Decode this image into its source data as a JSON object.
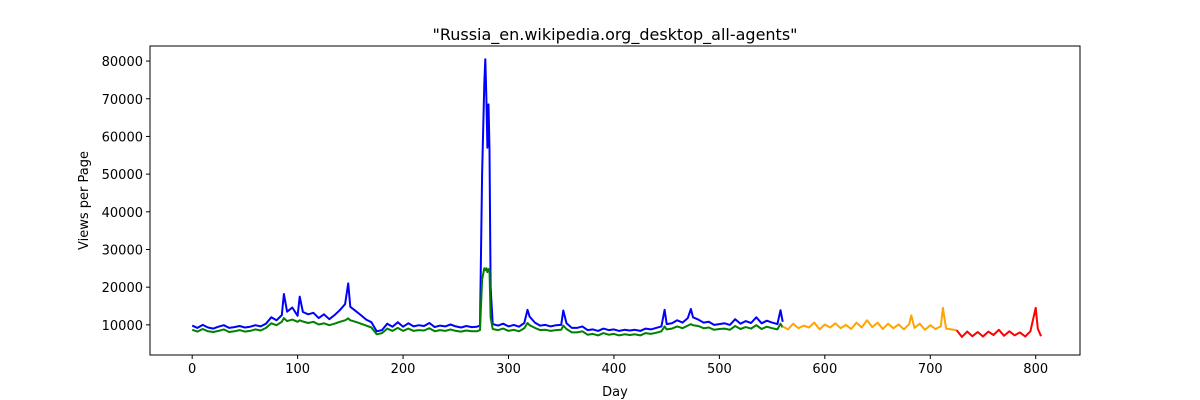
{
  "chart_data": {
    "type": "line",
    "title": "\"Russia_en.wikipedia.org_desktop_all-agents\"",
    "xlabel": "Day",
    "ylabel": "Views per Page",
    "xlim": [
      -40,
      842
    ],
    "ylim": [
      2000,
      84000
    ],
    "xticks": [
      0,
      100,
      200,
      300,
      400,
      500,
      600,
      700,
      800
    ],
    "yticks": [
      10000,
      20000,
      30000,
      40000,
      50000,
      60000,
      70000,
      80000
    ],
    "grid": false,
    "legend": "none",
    "series": [
      {
        "color": "#0000ff",
        "points": [
          [
            0,
            9800
          ],
          [
            5,
            9200
          ],
          [
            10,
            10000
          ],
          [
            15,
            9300
          ],
          [
            20,
            9000
          ],
          [
            25,
            9500
          ],
          [
            30,
            9900
          ],
          [
            35,
            9200
          ],
          [
            40,
            9400
          ],
          [
            45,
            9700
          ],
          [
            50,
            9300
          ],
          [
            55,
            9500
          ],
          [
            60,
            9900
          ],
          [
            65,
            9600
          ],
          [
            70,
            10300
          ],
          [
            75,
            12000
          ],
          [
            80,
            11200
          ],
          [
            85,
            12600
          ],
          [
            87,
            18200
          ],
          [
            90,
            13500
          ],
          [
            95,
            14600
          ],
          [
            100,
            12400
          ],
          [
            102,
            17500
          ],
          [
            105,
            13400
          ],
          [
            110,
            12800
          ],
          [
            115,
            13200
          ],
          [
            120,
            11800
          ],
          [
            125,
            12800
          ],
          [
            130,
            11500
          ],
          [
            135,
            12600
          ],
          [
            140,
            13900
          ],
          [
            145,
            15500
          ],
          [
            148,
            21000
          ],
          [
            150,
            14800
          ],
          [
            155,
            13700
          ],
          [
            160,
            12600
          ],
          [
            165,
            11400
          ],
          [
            170,
            10700
          ],
          [
            175,
            8300
          ],
          [
            180,
            8600
          ],
          [
            185,
            10300
          ],
          [
            190,
            9500
          ],
          [
            195,
            10700
          ],
          [
            200,
            9500
          ],
          [
            205,
            10400
          ],
          [
            210,
            9600
          ],
          [
            215,
            9900
          ],
          [
            220,
            9700
          ],
          [
            225,
            10500
          ],
          [
            230,
            9400
          ],
          [
            235,
            9800
          ],
          [
            240,
            9600
          ],
          [
            245,
            10100
          ],
          [
            250,
            9600
          ],
          [
            255,
            9300
          ],
          [
            260,
            9700
          ],
          [
            265,
            9400
          ],
          [
            270,
            9500
          ],
          [
            273,
            9800
          ],
          [
            275,
            50000
          ],
          [
            277,
            74000
          ],
          [
            278,
            80500
          ],
          [
            279,
            70000
          ],
          [
            280,
            57000
          ],
          [
            281,
            68500
          ],
          [
            282,
            56500
          ],
          [
            283,
            20000
          ],
          [
            285,
            10200
          ],
          [
            290,
            9800
          ],
          [
            295,
            10300
          ],
          [
            300,
            9600
          ],
          [
            305,
            10000
          ],
          [
            310,
            9500
          ],
          [
            315,
            10500
          ],
          [
            318,
            14000
          ],
          [
            320,
            12200
          ],
          [
            325,
            10600
          ],
          [
            330,
            9800
          ],
          [
            335,
            10000
          ],
          [
            340,
            9600
          ],
          [
            345,
            9900
          ],
          [
            350,
            10000
          ],
          [
            352,
            13800
          ],
          [
            355,
            10400
          ],
          [
            360,
            9200
          ],
          [
            365,
            9200
          ],
          [
            370,
            9600
          ],
          [
            375,
            8600
          ],
          [
            380,
            8800
          ],
          [
            385,
            8400
          ],
          [
            390,
            9000
          ],
          [
            395,
            8600
          ],
          [
            400,
            8800
          ],
          [
            405,
            8400
          ],
          [
            410,
            8700
          ],
          [
            415,
            8500
          ],
          [
            420,
            8700
          ],
          [
            425,
            8400
          ],
          [
            430,
            9000
          ],
          [
            435,
            8800
          ],
          [
            440,
            9200
          ],
          [
            445,
            9600
          ],
          [
            448,
            14000
          ],
          [
            450,
            10200
          ],
          [
            455,
            10400
          ],
          [
            460,
            11200
          ],
          [
            465,
            10600
          ],
          [
            470,
            11800
          ],
          [
            473,
            14200
          ],
          [
            475,
            12000
          ],
          [
            480,
            11400
          ],
          [
            485,
            10600
          ],
          [
            490,
            10800
          ],
          [
            495,
            10000
          ],
          [
            500,
            10200
          ],
          [
            505,
            10400
          ],
          [
            510,
            10000
          ],
          [
            515,
            11500
          ],
          [
            520,
            10300
          ],
          [
            525,
            11000
          ],
          [
            530,
            10500
          ],
          [
            535,
            12000
          ],
          [
            540,
            10400
          ],
          [
            545,
            11100
          ],
          [
            550,
            10600
          ],
          [
            555,
            10200
          ],
          [
            558,
            13900
          ],
          [
            560,
            10800
          ]
        ]
      },
      {
        "color": "#008000",
        "points": [
          [
            0,
            8700
          ],
          [
            5,
            8200
          ],
          [
            10,
            8900
          ],
          [
            15,
            8300
          ],
          [
            20,
            8100
          ],
          [
            25,
            8400
          ],
          [
            30,
            8800
          ],
          [
            35,
            8100
          ],
          [
            40,
            8300
          ],
          [
            45,
            8600
          ],
          [
            50,
            8200
          ],
          [
            55,
            8400
          ],
          [
            60,
            8800
          ],
          [
            65,
            8500
          ],
          [
            70,
            9200
          ],
          [
            75,
            10400
          ],
          [
            80,
            9900
          ],
          [
            85,
            10800
          ],
          [
            87,
            11800
          ],
          [
            90,
            11000
          ],
          [
            95,
            11400
          ],
          [
            100,
            10800
          ],
          [
            102,
            11200
          ],
          [
            105,
            10900
          ],
          [
            110,
            10500
          ],
          [
            115,
            10800
          ],
          [
            120,
            10100
          ],
          [
            125,
            10400
          ],
          [
            130,
            9900
          ],
          [
            135,
            10300
          ],
          [
            140,
            10800
          ],
          [
            145,
            11200
          ],
          [
            148,
            11700
          ],
          [
            150,
            11200
          ],
          [
            155,
            10800
          ],
          [
            160,
            10300
          ],
          [
            165,
            9800
          ],
          [
            170,
            9300
          ],
          [
            175,
            7500
          ],
          [
            180,
            7800
          ],
          [
            185,
            9000
          ],
          [
            190,
            8400
          ],
          [
            195,
            9200
          ],
          [
            200,
            8400
          ],
          [
            205,
            9000
          ],
          [
            210,
            8400
          ],
          [
            215,
            8600
          ],
          [
            220,
            8500
          ],
          [
            225,
            9100
          ],
          [
            230,
            8300
          ],
          [
            235,
            8600
          ],
          [
            240,
            8400
          ],
          [
            245,
            8800
          ],
          [
            250,
            8400
          ],
          [
            255,
            8200
          ],
          [
            260,
            8500
          ],
          [
            265,
            8300
          ],
          [
            270,
            8300
          ],
          [
            273,
            8600
          ],
          [
            275,
            22000
          ],
          [
            277,
            25000
          ],
          [
            278,
            24500
          ],
          [
            279,
            25000
          ],
          [
            280,
            24000
          ],
          [
            281,
            24800
          ],
          [
            282,
            24500
          ],
          [
            283,
            12000
          ],
          [
            285,
            8900
          ],
          [
            290,
            8600
          ],
          [
            295,
            9000
          ],
          [
            300,
            8400
          ],
          [
            305,
            8700
          ],
          [
            310,
            8300
          ],
          [
            315,
            9100
          ],
          [
            318,
            10500
          ],
          [
            320,
            9900
          ],
          [
            325,
            9200
          ],
          [
            330,
            8600
          ],
          [
            335,
            8700
          ],
          [
            340,
            8400
          ],
          [
            345,
            8600
          ],
          [
            350,
            8700
          ],
          [
            352,
            9800
          ],
          [
            355,
            8900
          ],
          [
            360,
            8000
          ],
          [
            365,
            8000
          ],
          [
            370,
            8300
          ],
          [
            375,
            7400
          ],
          [
            380,
            7600
          ],
          [
            385,
            7200
          ],
          [
            390,
            7800
          ],
          [
            395,
            7400
          ],
          [
            400,
            7600
          ],
          [
            405,
            7200
          ],
          [
            410,
            7500
          ],
          [
            415,
            7300
          ],
          [
            420,
            7500
          ],
          [
            425,
            7200
          ],
          [
            430,
            7800
          ],
          [
            435,
            7600
          ],
          [
            440,
            7900
          ],
          [
            445,
            8300
          ],
          [
            448,
            9600
          ],
          [
            450,
            8800
          ],
          [
            455,
            9000
          ],
          [
            460,
            9600
          ],
          [
            465,
            9100
          ],
          [
            470,
            9800
          ],
          [
            473,
            10200
          ],
          [
            475,
            9900
          ],
          [
            480,
            9700
          ],
          [
            485,
            9100
          ],
          [
            490,
            9300
          ],
          [
            495,
            8700
          ],
          [
            500,
            8900
          ],
          [
            505,
            9000
          ],
          [
            510,
            8700
          ],
          [
            515,
            9700
          ],
          [
            520,
            8900
          ],
          [
            525,
            9400
          ],
          [
            530,
            9000
          ],
          [
            535,
            9900
          ],
          [
            540,
            8900
          ],
          [
            545,
            9500
          ],
          [
            550,
            9100
          ],
          [
            555,
            8800
          ],
          [
            558,
            10300
          ],
          [
            560,
            9300
          ]
        ]
      },
      {
        "color": "#ffa500",
        "points": [
          [
            560,
            9600
          ],
          [
            565,
            8800
          ],
          [
            570,
            10300
          ],
          [
            575,
            9100
          ],
          [
            580,
            9800
          ],
          [
            585,
            9300
          ],
          [
            590,
            10600
          ],
          [
            595,
            8800
          ],
          [
            600,
            10100
          ],
          [
            605,
            9300
          ],
          [
            610,
            10400
          ],
          [
            615,
            9100
          ],
          [
            620,
            10000
          ],
          [
            625,
            8900
          ],
          [
            630,
            10600
          ],
          [
            635,
            9300
          ],
          [
            640,
            11200
          ],
          [
            645,
            9400
          ],
          [
            650,
            10600
          ],
          [
            655,
            8900
          ],
          [
            660,
            10300
          ],
          [
            665,
            9100
          ],
          [
            670,
            10100
          ],
          [
            675,
            8800
          ],
          [
            680,
            10200
          ],
          [
            682,
            12500
          ],
          [
            685,
            9200
          ],
          [
            690,
            10300
          ],
          [
            695,
            8700
          ],
          [
            700,
            9900
          ],
          [
            705,
            8900
          ],
          [
            710,
            9600
          ],
          [
            712,
            14500
          ],
          [
            715,
            9000
          ],
          [
            720,
            8800
          ],
          [
            725,
            8600
          ]
        ]
      },
      {
        "color": "#ff0000",
        "points": [
          [
            725,
            8600
          ],
          [
            730,
            6800
          ],
          [
            735,
            8200
          ],
          [
            740,
            7000
          ],
          [
            745,
            8100
          ],
          [
            750,
            6900
          ],
          [
            755,
            8200
          ],
          [
            760,
            7300
          ],
          [
            765,
            8700
          ],
          [
            770,
            7100
          ],
          [
            775,
            8300
          ],
          [
            780,
            7200
          ],
          [
            785,
            8000
          ],
          [
            790,
            6900
          ],
          [
            795,
            8300
          ],
          [
            800,
            14500
          ],
          [
            802,
            9000
          ],
          [
            805,
            7000
          ]
        ]
      }
    ]
  }
}
